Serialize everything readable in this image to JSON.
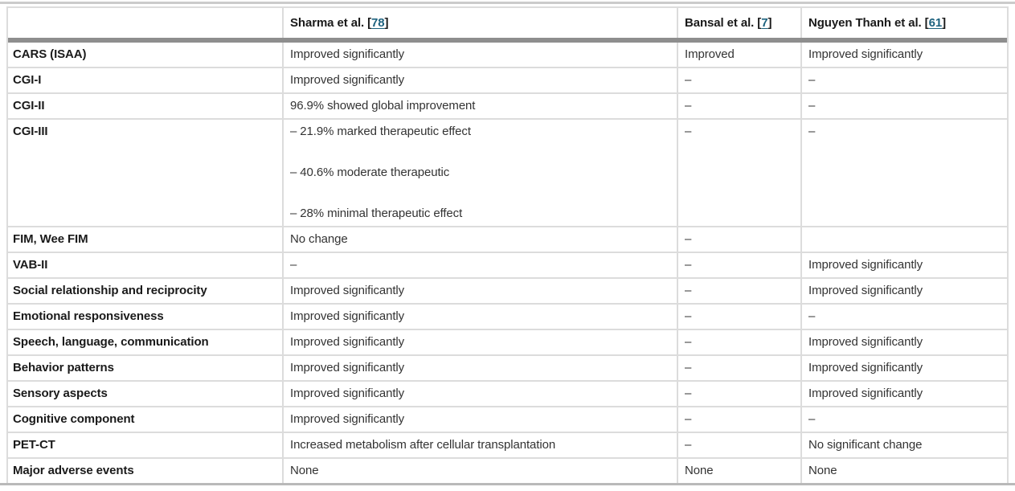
{
  "colors": {
    "citation_link": "#1d627f",
    "header_rule": "#8e8e8e",
    "row_divider": "#dcdcdc",
    "top_rule": "#cbcbcb",
    "bottom_rule": "#b9b9b9"
  },
  "table": {
    "columns": [
      {
        "label": ""
      },
      {
        "prefix": "Sharma et al. [",
        "ref": "78",
        "suffix": "]"
      },
      {
        "prefix": "Bansal et al. [",
        "ref": "7",
        "suffix": "]"
      },
      {
        "prefix": "Nguyen Thanh et al. [",
        "ref": "61",
        "suffix": "]"
      }
    ],
    "rows": [
      {
        "label": "CARS (ISAA)",
        "cells": [
          "Improved significantly",
          "Improved",
          "Improved significantly"
        ]
      },
      {
        "label": "CGI-I",
        "cells": [
          "Improved significantly",
          "–",
          "–"
        ]
      },
      {
        "label": "CGI-II",
        "cells": [
          "96.9% showed global improvement",
          "–",
          "–"
        ]
      },
      {
        "label": "CGI-III",
        "lines": [
          "– 21.9% marked therapeutic effect",
          "– 40.6% moderate therapeutic",
          "– 28% minimal therapeutic effect"
        ],
        "cells": [
          "",
          "–",
          "–"
        ]
      },
      {
        "label": "FIM, Wee FIM",
        "cells": [
          "No change",
          "–",
          ""
        ]
      },
      {
        "label": "VAB-II",
        "cells": [
          "–",
          "–",
          "Improved significantly"
        ]
      },
      {
        "label": "Social relationship and reciprocity",
        "cells": [
          "Improved significantly",
          "–",
          "Improved significantly"
        ]
      },
      {
        "label": "Emotional responsiveness",
        "cells": [
          "Improved significantly",
          "–",
          "–"
        ]
      },
      {
        "label": "Speech, language, communication",
        "cells": [
          "Improved significantly",
          "–",
          "Improved significantly"
        ]
      },
      {
        "label": "Behavior patterns",
        "cells": [
          "Improved significantly",
          "–",
          "Improved significantly"
        ]
      },
      {
        "label": "Sensory aspects",
        "cells": [
          "Improved significantly",
          "–",
          "Improved significantly"
        ]
      },
      {
        "label": "Cognitive component",
        "cells": [
          "Improved significantly",
          "–",
          "–"
        ]
      },
      {
        "label": "PET-CT",
        "cells": [
          "Increased metabolism after cellular transplantation",
          "–",
          "No significant change"
        ]
      },
      {
        "label": "Major adverse events",
        "cells": [
          "None",
          "None",
          "None"
        ]
      }
    ]
  }
}
